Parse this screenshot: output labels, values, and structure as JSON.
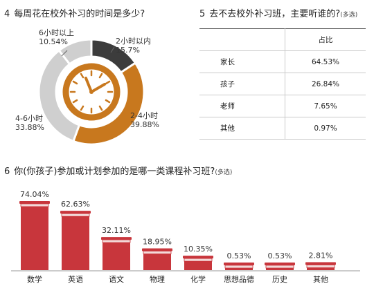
{
  "q4": {
    "number": "4",
    "title": "每周花在校外补习的时间是多少?",
    "labels": [
      {
        "name": "2小时以内",
        "value": "15.7%"
      },
      {
        "name": "2-4小时",
        "value": "39.88%"
      },
      {
        "name": "4-6小时",
        "value": "33.88%"
      },
      {
        "name": "6小时以上",
        "value": "10.54%"
      }
    ]
  },
  "q5": {
    "number": "5",
    "title": "去不去校外补习班，主要听谁的?",
    "note": "(多选)",
    "header": "占比",
    "rows": [
      {
        "name": "家长",
        "value": "64.53%"
      },
      {
        "name": "孩子",
        "value": "26.84%"
      },
      {
        "name": "老师",
        "value": "7.65%"
      },
      {
        "name": "其他",
        "value": "0.97%"
      }
    ]
  },
  "q6": {
    "number": "6",
    "title": "你(你孩子)参加或计划参加的是哪一类课程补习班?",
    "note": "(多选)"
  },
  "colors": {
    "dark": "#3c3c3c",
    "orange": "#c8781e",
    "gray": "#cfcfcf",
    "red": "#c8363c"
  },
  "chart_data": [
    {
      "type": "pie",
      "categories": [
        "2小时以内",
        "2-4小时",
        "4-6小时",
        "6小时以上"
      ],
      "values": [
        15.7,
        39.88,
        33.88,
        10.54
      ],
      "title": "每周花在校外补习的时间是多少?"
    },
    {
      "type": "table",
      "columns": [
        "",
        "占比"
      ],
      "categories": [
        "家长",
        "孩子",
        "老师",
        "其他"
      ],
      "values": [
        64.53,
        26.84,
        7.65,
        0.97
      ],
      "title": "去不去校外补习班，主要听谁的?"
    },
    {
      "type": "bar",
      "categories": [
        "数学",
        "英语",
        "语文",
        "物理",
        "化学",
        "思想品德",
        "历史",
        "其他"
      ],
      "values": [
        74.04,
        62.63,
        32.11,
        18.95,
        10.35,
        0.53,
        0.53,
        2.81
      ],
      "labels": [
        "74.04%",
        "62.63%",
        "32.11%",
        "18.95%",
        "10.35%",
        "0.53%",
        "0.53%",
        "2.81%"
      ],
      "title": "你(你孩子)参加或计划参加的是哪一类课程补习班?"
    }
  ]
}
